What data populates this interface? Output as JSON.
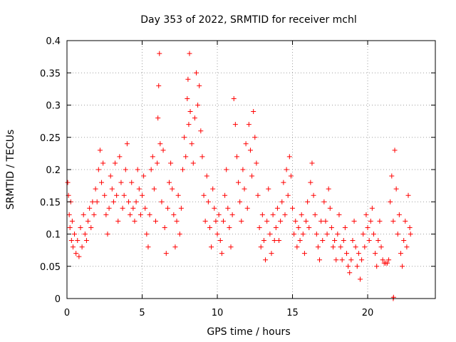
{
  "chart_data": {
    "type": "scatter",
    "title": "Day 353 of 2022, SRMTID for receiver mchl",
    "xlabel": "GPS time / hours",
    "ylabel": "SRMTID / TECUs",
    "xlim": [
      0,
      24.5
    ],
    "ylim": [
      0,
      0.4
    ],
    "x_ticks": [
      0,
      5,
      10,
      15,
      20
    ],
    "x_tick_labels": [
      "0",
      "5",
      "10",
      "15",
      "20"
    ],
    "y_ticks": [
      0,
      0.05,
      0.1,
      0.15,
      0.2,
      0.25,
      0.3,
      0.35,
      0.4
    ],
    "y_tick_labels": [
      "0",
      "0.05",
      "0.1",
      "0.15",
      "0.2",
      "0.25",
      "0.3",
      "0.35",
      "0.4"
    ],
    "grid": true,
    "marker": "+",
    "series": [
      {
        "name": "SRMTID",
        "color": "#ff0000",
        "points": [
          [
            0.05,
            0.18
          ],
          [
            0.1,
            0.16
          ],
          [
            0.15,
            0.13
          ],
          [
            0.2,
            0.11
          ],
          [
            0.25,
            0.15
          ],
          [
            0.3,
            0.09
          ],
          [
            0.35,
            0.12
          ],
          [
            0.4,
            0.08
          ],
          [
            0.5,
            0.1
          ],
          [
            0.6,
            0.07
          ],
          [
            0.7,
            0.09
          ],
          [
            0.8,
            0.065
          ],
          [
            0.9,
            0.11
          ],
          [
            1.0,
            0.08
          ],
          [
            1.1,
            0.13
          ],
          [
            1.2,
            0.1
          ],
          [
            1.3,
            0.09
          ],
          [
            1.4,
            0.12
          ],
          [
            1.5,
            0.14
          ],
          [
            1.6,
            0.11
          ],
          [
            1.7,
            0.15
          ],
          [
            1.8,
            0.13
          ],
          [
            1.9,
            0.17
          ],
          [
            2.0,
            0.15
          ],
          [
            2.1,
            0.2
          ],
          [
            2.2,
            0.23
          ],
          [
            2.3,
            0.18
          ],
          [
            2.4,
            0.21
          ],
          [
            2.5,
            0.16
          ],
          [
            2.6,
            0.13
          ],
          [
            2.7,
            0.1
          ],
          [
            2.8,
            0.14
          ],
          [
            2.9,
            0.19
          ],
          [
            3.0,
            0.17
          ],
          [
            3.1,
            0.15
          ],
          [
            3.2,
            0.21
          ],
          [
            3.3,
            0.16
          ],
          [
            3.4,
            0.12
          ],
          [
            3.5,
            0.22
          ],
          [
            3.6,
            0.18
          ],
          [
            3.7,
            0.14
          ],
          [
            3.8,
            0.16
          ],
          [
            3.9,
            0.2
          ],
          [
            4.0,
            0.24
          ],
          [
            4.1,
            0.15
          ],
          [
            4.2,
            0.13
          ],
          [
            4.3,
            0.18
          ],
          [
            4.4,
            0.14
          ],
          [
            4.5,
            0.12
          ],
          [
            4.6,
            0.15
          ],
          [
            4.7,
            0.2
          ],
          [
            4.8,
            0.17
          ],
          [
            4.9,
            0.13
          ],
          [
            5.0,
            0.16
          ],
          [
            5.1,
            0.19
          ],
          [
            5.2,
            0.14
          ],
          [
            5.3,
            0.1
          ],
          [
            5.4,
            0.08
          ],
          [
            5.5,
            0.13
          ],
          [
            5.6,
            0.2
          ],
          [
            5.7,
            0.22
          ],
          [
            5.8,
            0.17
          ],
          [
            5.9,
            0.12
          ],
          [
            6.0,
            0.21
          ],
          [
            6.05,
            0.28
          ],
          [
            6.1,
            0.33
          ],
          [
            6.15,
            0.38
          ],
          [
            6.2,
            0.24
          ],
          [
            6.3,
            0.15
          ],
          [
            6.4,
            0.23
          ],
          [
            6.5,
            0.11
          ],
          [
            6.6,
            0.07
          ],
          [
            6.7,
            0.14
          ],
          [
            6.8,
            0.18
          ],
          [
            6.9,
            0.21
          ],
          [
            7.0,
            0.17
          ],
          [
            7.1,
            0.13
          ],
          [
            7.2,
            0.08
          ],
          [
            7.3,
            0.12
          ],
          [
            7.4,
            0.16
          ],
          [
            7.5,
            0.1
          ],
          [
            7.6,
            0.14
          ],
          [
            7.7,
            0.2
          ],
          [
            7.8,
            0.25
          ],
          [
            7.9,
            0.22
          ],
          [
            8.0,
            0.31
          ],
          [
            8.05,
            0.34
          ],
          [
            8.1,
            0.27
          ],
          [
            8.15,
            0.38
          ],
          [
            8.2,
            0.29
          ],
          [
            8.3,
            0.24
          ],
          [
            8.4,
            0.21
          ],
          [
            8.5,
            0.28
          ],
          [
            8.6,
            0.35
          ],
          [
            8.7,
            0.3
          ],
          [
            8.8,
            0.33
          ],
          [
            8.9,
            0.26
          ],
          [
            9.0,
            0.22
          ],
          [
            9.1,
            0.16
          ],
          [
            9.2,
            0.12
          ],
          [
            9.3,
            0.19
          ],
          [
            9.4,
            0.15
          ],
          [
            9.5,
            0.11
          ],
          [
            9.6,
            0.08
          ],
          [
            9.7,
            0.17
          ],
          [
            9.8,
            0.14
          ],
          [
            9.9,
            0.12
          ],
          [
            10.0,
            0.1
          ],
          [
            10.1,
            0.13
          ],
          [
            10.2,
            0.09
          ],
          [
            10.3,
            0.07
          ],
          [
            10.4,
            0.12
          ],
          [
            10.5,
            0.16
          ],
          [
            10.6,
            0.2
          ],
          [
            10.7,
            0.14
          ],
          [
            10.8,
            0.11
          ],
          [
            10.9,
            0.08
          ],
          [
            11.0,
            0.13
          ],
          [
            11.1,
            0.31
          ],
          [
            11.2,
            0.27
          ],
          [
            11.3,
            0.22
          ],
          [
            11.4,
            0.18
          ],
          [
            11.5,
            0.15
          ],
          [
            11.6,
            0.12
          ],
          [
            11.7,
            0.2
          ],
          [
            11.8,
            0.17
          ],
          [
            11.9,
            0.24
          ],
          [
            12.0,
            0.14
          ],
          [
            12.1,
            0.27
          ],
          [
            12.2,
            0.23
          ],
          [
            12.3,
            0.19
          ],
          [
            12.4,
            0.29
          ],
          [
            12.5,
            0.25
          ],
          [
            12.6,
            0.21
          ],
          [
            12.7,
            0.16
          ],
          [
            12.8,
            0.11
          ],
          [
            12.9,
            0.08
          ],
          [
            13.0,
            0.13
          ],
          [
            13.1,
            0.09
          ],
          [
            13.2,
            0.06
          ],
          [
            13.3,
            0.12
          ],
          [
            13.4,
            0.17
          ],
          [
            13.5,
            0.1
          ],
          [
            13.6,
            0.07
          ],
          [
            13.7,
            0.13
          ],
          [
            13.8,
            0.09
          ],
          [
            13.9,
            0.11
          ],
          [
            14.0,
            0.14
          ],
          [
            14.1,
            0.09
          ],
          [
            14.2,
            0.12
          ],
          [
            14.3,
            0.15
          ],
          [
            14.4,
            0.18
          ],
          [
            14.5,
            0.13
          ],
          [
            14.6,
            0.2
          ],
          [
            14.7,
            0.16
          ],
          [
            14.8,
            0.22
          ],
          [
            14.9,
            0.19
          ],
          [
            15.0,
            0.14
          ],
          [
            15.1,
            0.1
          ],
          [
            15.2,
            0.12
          ],
          [
            15.3,
            0.08
          ],
          [
            15.4,
            0.11
          ],
          [
            15.5,
            0.09
          ],
          [
            15.6,
            0.13
          ],
          [
            15.7,
            0.1
          ],
          [
            15.8,
            0.07
          ],
          [
            15.9,
            0.12
          ],
          [
            16.0,
            0.15
          ],
          [
            16.1,
            0.11
          ],
          [
            16.2,
            0.18
          ],
          [
            16.3,
            0.21
          ],
          [
            16.4,
            0.16
          ],
          [
            16.5,
            0.13
          ],
          [
            16.6,
            0.1
          ],
          [
            16.7,
            0.08
          ],
          [
            16.8,
            0.06
          ],
          [
            16.9,
            0.12
          ],
          [
            17.0,
            0.09
          ],
          [
            17.1,
            0.15
          ],
          [
            17.2,
            0.12
          ],
          [
            17.3,
            0.1
          ],
          [
            17.4,
            0.17
          ],
          [
            17.5,
            0.14
          ],
          [
            17.6,
            0.11
          ],
          [
            17.7,
            0.08
          ],
          [
            17.8,
            0.09
          ],
          [
            17.9,
            0.06
          ],
          [
            18.0,
            0.1
          ],
          [
            18.1,
            0.13
          ],
          [
            18.2,
            0.08
          ],
          [
            18.3,
            0.06
          ],
          [
            18.4,
            0.09
          ],
          [
            18.5,
            0.11
          ],
          [
            18.6,
            0.07
          ],
          [
            18.7,
            0.05
          ],
          [
            18.8,
            0.04
          ],
          [
            18.9,
            0.06
          ],
          [
            19.0,
            0.09
          ],
          [
            19.1,
            0.12
          ],
          [
            19.2,
            0.08
          ],
          [
            19.3,
            0.05
          ],
          [
            19.4,
            0.07
          ],
          [
            19.5,
            0.03
          ],
          [
            19.6,
            0.06
          ],
          [
            19.7,
            0.1
          ],
          [
            19.8,
            0.08
          ],
          [
            19.9,
            0.13
          ],
          [
            20.0,
            0.11
          ],
          [
            20.1,
            0.09
          ],
          [
            20.2,
            0.12
          ],
          [
            20.3,
            0.14
          ],
          [
            20.4,
            0.1
          ],
          [
            20.5,
            0.07
          ],
          [
            20.6,
            0.05
          ],
          [
            20.7,
            0.09
          ],
          [
            20.8,
            0.12
          ],
          [
            20.9,
            0.08
          ],
          [
            21.0,
            0.06
          ],
          [
            21.1,
            0.055
          ],
          [
            21.2,
            0.055
          ],
          [
            21.3,
            0.055
          ],
          [
            21.4,
            0.06
          ],
          [
            21.5,
            0.15
          ],
          [
            21.6,
            0.19
          ],
          [
            21.7,
            0.12
          ],
          [
            21.8,
            0.23
          ],
          [
            21.9,
            0.17
          ],
          [
            22.0,
            0.1
          ],
          [
            22.1,
            0.13
          ],
          [
            22.2,
            0.07
          ],
          [
            22.3,
            0.05
          ],
          [
            22.4,
            0.09
          ],
          [
            22.5,
            0.12
          ],
          [
            22.6,
            0.08
          ],
          [
            22.7,
            0.16
          ],
          [
            22.8,
            0.11
          ],
          [
            22.85,
            0.1
          ],
          [
            21.7,
            0.0
          ],
          [
            21.72,
            0.002
          ]
        ]
      }
    ]
  }
}
